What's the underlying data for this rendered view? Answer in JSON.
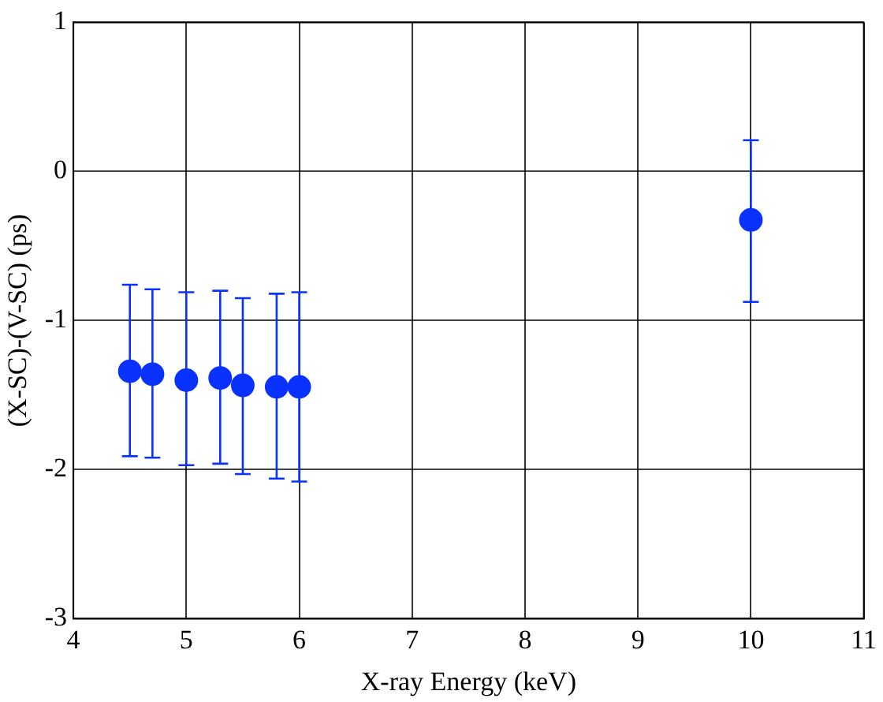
{
  "chart_data": {
    "type": "scatter",
    "xlabel": "X-ray Energy (keV)",
    "ylabel": "(X-SC)-(V-SC) (ps)",
    "x": [
      4.5,
      4.7,
      5.0,
      5.3,
      5.5,
      5.8,
      6.0,
      10
    ],
    "series": [
      {
        "color": "#0a32ff",
        "values": [
          -1.34,
          -1.36,
          -1.4,
          -1.385,
          -1.435,
          -1.445,
          -1.445,
          -0.325
        ],
        "errors": [
          [
            -1.91,
            -0.76
          ],
          [
            -1.92,
            -0.79
          ],
          [
            -1.97,
            -0.81
          ],
          [
            -1.96,
            -0.8
          ],
          [
            -2.03,
            -0.85
          ],
          [
            -2.06,
            -0.82
          ],
          [
            -2.08,
            -0.81
          ],
          [
            -0.875,
            0.21
          ]
        ]
      }
    ],
    "xlim": [
      4,
      11
    ],
    "xticks": [
      4,
      5,
      6,
      7,
      8,
      9,
      10,
      11
    ],
    "ylim": [
      -3,
      1
    ],
    "yticks": [
      -3,
      -2,
      -1,
      0,
      1
    ],
    "grid": true,
    "marker": "circle",
    "legend": false
  }
}
